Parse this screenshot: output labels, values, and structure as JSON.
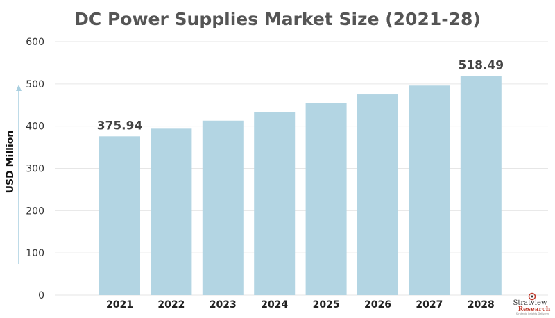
{
  "chart_data": {
    "type": "bar",
    "title": "DC Power Supplies Market Size (2021-28)",
    "ylabel": "USD Million",
    "xlabel": "",
    "categories": [
      "2021",
      "2022",
      "2023",
      "2024",
      "2025",
      "2026",
      "2027",
      "2028"
    ],
    "values": [
      375.94,
      394,
      413,
      433,
      454,
      475,
      496,
      518.49
    ],
    "data_labels": [
      "375.94",
      "",
      "",
      "",
      "",
      "",
      "",
      "518.49"
    ],
    "ylim": [
      0,
      600
    ],
    "yticks": [
      "0",
      "100",
      "200",
      "300",
      "400",
      "500",
      "600"
    ],
    "grid": true,
    "bar_color": "#b3d5e3"
  },
  "logo": {
    "word1": "Stratview",
    "word2": "Research",
    "tagline": "Strategic Insights Delivered"
  }
}
